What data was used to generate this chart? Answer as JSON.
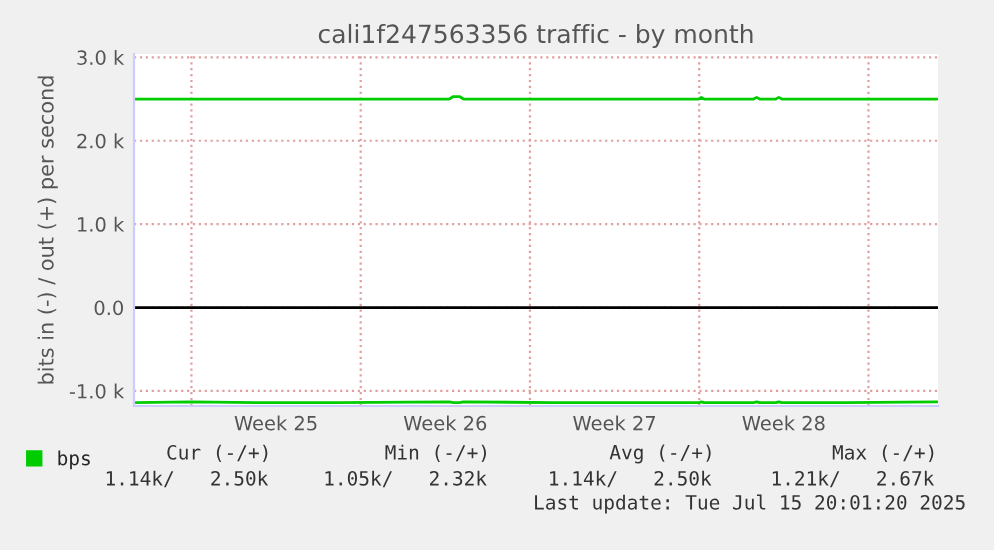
{
  "chart_data": {
    "type": "line",
    "title": "cali1f247563356 traffic - by month",
    "ylabel": "bits in (-) / out (+) per second",
    "x": [
      "2025-06-13T15:00",
      "2025-06-16T00:00",
      "2025-06-19T00:00",
      "2025-06-22T00:00",
      "2025-06-26T16:00",
      "2025-06-26T20:00",
      "2025-06-27T02:00",
      "2025-06-27T06:00",
      "2025-07-01T00:00",
      "2025-07-07T00:00",
      "2025-07-07T02:00",
      "2025-07-07T05:00",
      "2025-07-09T06:00",
      "2025-07-09T09:00",
      "2025-07-09T12:00",
      "2025-07-10T04:00",
      "2025-07-10T07:00",
      "2025-07-10T10:00",
      "2025-07-13T00:00",
      "2025-07-16T20:00"
    ],
    "series": [
      {
        "name": "bps",
        "color": "#00cc00",
        "values": [
          2500,
          2500,
          2500,
          2500,
          2500,
          2530,
          2530,
          2500,
          2500,
          2500,
          2520,
          2500,
          2500,
          2520,
          2500,
          2500,
          2520,
          2500,
          2500,
          2500
        ]
      },
      {
        "color": "#00cc00",
        "values": [
          -1140,
          -1130,
          -1140,
          -1140,
          -1130,
          -1140,
          -1140,
          -1130,
          -1140,
          -1140,
          -1130,
          -1140,
          -1140,
          -1130,
          -1140,
          -1140,
          -1130,
          -1140,
          -1140,
          -1130
        ]
      }
    ],
    "xlim": [
      "2025-06-13T15:00",
      "2025-07-16T21:00"
    ],
    "xticks": [
      {
        "value": "2025-06-16",
        "label": null
      },
      {
        "value": "2025-06-19T12:00",
        "label": "Week 25"
      },
      {
        "value": "2025-06-23",
        "label": null
      },
      {
        "value": "2025-06-26T12:00",
        "label": "Week 26"
      },
      {
        "value": "2025-06-30",
        "label": null
      },
      {
        "value": "2025-07-03T12:00",
        "label": "Week 27"
      },
      {
        "value": "2025-07-07",
        "label": null
      },
      {
        "value": "2025-07-10T12:00",
        "label": "Week 28"
      },
      {
        "value": "2025-07-14",
        "label": null
      }
    ],
    "ylim": [
      -1180,
      3040
    ],
    "yticks": [
      {
        "value": -1000,
        "label": "-1.0 k"
      },
      {
        "value": 0,
        "label": "0.0"
      },
      {
        "value": 1000,
        "label": "1.0 k"
      },
      {
        "value": 2000,
        "label": "2.0 k"
      },
      {
        "value": 3000,
        "label": "3.0 k"
      }
    ],
    "ref_lines": [
      {
        "axis": "y",
        "value": 0,
        "color": "#000000"
      }
    ],
    "grid": true,
    "legend": "bottom left",
    "annotations": [
      "Cur (-/+)",
      "Min (-/+)",
      "Avg (-/+)",
      "Max (-/+)",
      "1.14k/   2.50k",
      "1.05k/   2.32k",
      "1.14k/   2.50k",
      "1.21k/   2.67k",
      "Last update: Tue Jul 15 20:01:20 2025"
    ]
  }
}
